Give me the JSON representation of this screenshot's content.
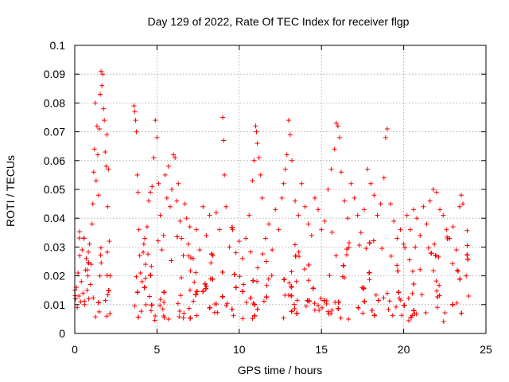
{
  "chart_data": {
    "type": "scatter",
    "title": "Day 129 of 2022, Rate Of TEC Index for receiver flgp",
    "xlabel": "GPS time / hours",
    "ylabel": "ROTI / TECUs",
    "xlim": [
      0,
      25
    ],
    "ylim": [
      0,
      0.1
    ],
    "x_ticks": [
      0,
      5,
      10,
      15,
      20,
      25
    ],
    "x_tick_labels": [
      "0",
      "5",
      "10",
      "15",
      "20",
      "25"
    ],
    "y_ticks": [
      0,
      0.01,
      0.02,
      0.03,
      0.04,
      0.05,
      0.06,
      0.07,
      0.08,
      0.09,
      0.1
    ],
    "y_tick_labels": [
      "0",
      "0.01",
      "0.02",
      "0.03",
      "0.04",
      "0.05",
      "0.06",
      "0.07",
      "0.08",
      "0.09",
      "0.1"
    ],
    "grid": true,
    "marker": "+",
    "marker_color": "#ff0000",
    "data_gaps_hours": [
      [
        2.2,
        3.5
      ]
    ],
    "series": [
      {
        "name": "ROTI",
        "points": [
          [
            0.05,
            0.012
          ],
          [
            0.1,
            0.016
          ],
          [
            0.15,
            0.009
          ],
          [
            0.2,
            0.021
          ],
          [
            0.25,
            0.013
          ],
          [
            0.3,
            0.027
          ],
          [
            0.35,
            0.011
          ],
          [
            0.4,
            0.018
          ],
          [
            0.45,
            0.029
          ],
          [
            0.5,
            0.014
          ],
          [
            0.55,
            0.033
          ],
          [
            0.6,
            0.01
          ],
          [
            0.65,
            0.022
          ],
          [
            0.7,
            0.026
          ],
          [
            0.75,
            0.015
          ],
          [
            0.8,
            0.02
          ],
          [
            0.85,
            0.012
          ],
          [
            0.9,
            0.031
          ],
          [
            0.95,
            0.017
          ],
          [
            1.0,
            0.024
          ],
          [
            1.05,
            0.038
          ],
          [
            1.1,
            0.045
          ],
          [
            1.15,
            0.056
          ],
          [
            1.2,
            0.064
          ],
          [
            1.25,
            0.08
          ],
          [
            1.3,
            0.053
          ],
          [
            1.35,
            0.072
          ],
          [
            1.4,
            0.062
          ],
          [
            1.45,
            0.048
          ],
          [
            1.5,
            0.071
          ],
          [
            1.55,
            0.083
          ],
          [
            1.6,
            0.091
          ],
          [
            1.65,
            0.086
          ],
          [
            1.7,
            0.09
          ],
          [
            1.75,
            0.078
          ],
          [
            1.8,
            0.074
          ],
          [
            1.85,
            0.063
          ],
          [
            1.9,
            0.058
          ],
          [
            1.95,
            0.069
          ],
          [
            2.0,
            0.044
          ],
          [
            2.05,
            0.057
          ],
          [
            2.1,
            0.032
          ],
          [
            2.15,
            0.02
          ],
          [
            3.6,
            0.079
          ],
          [
            3.65,
            0.077
          ],
          [
            3.7,
            0.074
          ],
          [
            3.75,
            0.07
          ],
          [
            3.8,
            0.055
          ],
          [
            3.85,
            0.049
          ],
          [
            3.9,
            0.036
          ],
          [
            3.95,
            0.027
          ],
          [
            4.0,
            0.021
          ],
          [
            4.1,
            0.018
          ],
          [
            4.2,
            0.031
          ],
          [
            4.3,
            0.024
          ],
          [
            4.4,
            0.037
          ],
          [
            4.5,
            0.046
          ],
          [
            4.6,
            0.049
          ],
          [
            4.7,
            0.051
          ],
          [
            4.8,
            0.061
          ],
          [
            4.9,
            0.074
          ],
          [
            5.0,
            0.068
          ],
          [
            5.1,
            0.052
          ],
          [
            5.2,
            0.041
          ],
          [
            5.3,
            0.029
          ],
          [
            5.4,
            0.034
          ],
          [
            5.5,
            0.055
          ],
          [
            5.6,
            0.047
          ],
          [
            5.7,
            0.058
          ],
          [
            5.8,
            0.044
          ],
          [
            5.9,
            0.05
          ],
          [
            6.0,
            0.062
          ],
          [
            6.1,
            0.061
          ],
          [
            6.2,
            0.046
          ],
          [
            6.3,
            0.052
          ],
          [
            6.4,
            0.039
          ],
          [
            6.5,
            0.033
          ],
          [
            6.6,
            0.027
          ],
          [
            6.7,
            0.045
          ],
          [
            6.8,
            0.04
          ],
          [
            6.9,
            0.031
          ],
          [
            7.0,
            0.037
          ],
          [
            7.2,
            0.026
          ],
          [
            7.4,
            0.036
          ],
          [
            7.6,
            0.029
          ],
          [
            7.8,
            0.044
          ],
          [
            8.0,
            0.034
          ],
          [
            8.2,
            0.041
          ],
          [
            8.4,
            0.027
          ],
          [
            8.6,
            0.042
          ],
          [
            8.8,
            0.036
          ],
          [
            9.0,
            0.075
          ],
          [
            9.05,
            0.067
          ],
          [
            9.1,
            0.055
          ],
          [
            9.2,
            0.044
          ],
          [
            9.4,
            0.03
          ],
          [
            9.6,
            0.036
          ],
          [
            9.8,
            0.028
          ],
          [
            10.0,
            0.032
          ],
          [
            10.2,
            0.026
          ],
          [
            10.4,
            0.033
          ],
          [
            10.6,
            0.041
          ],
          [
            10.8,
            0.053
          ],
          [
            10.9,
            0.06
          ],
          [
            11.0,
            0.072
          ],
          [
            11.05,
            0.07
          ],
          [
            11.1,
            0.066
          ],
          [
            11.2,
            0.061
          ],
          [
            11.3,
            0.055
          ],
          [
            11.4,
            0.047
          ],
          [
            11.6,
            0.033
          ],
          [
            11.8,
            0.038
          ],
          [
            12.0,
            0.029
          ],
          [
            12.2,
            0.043
          ],
          [
            12.4,
            0.036
          ],
          [
            12.6,
            0.047
          ],
          [
            12.7,
            0.052
          ],
          [
            12.8,
            0.057
          ],
          [
            12.9,
            0.062
          ],
          [
            13.0,
            0.074
          ],
          [
            13.1,
            0.069
          ],
          [
            13.2,
            0.06
          ],
          [
            13.4,
            0.046
          ],
          [
            13.6,
            0.041
          ],
          [
            13.8,
            0.052
          ],
          [
            14.0,
            0.044
          ],
          [
            14.2,
            0.038
          ],
          [
            14.4,
            0.034
          ],
          [
            14.6,
            0.047
          ],
          [
            14.8,
            0.043
          ],
          [
            15.0,
            0.036
          ],
          [
            15.2,
            0.039
          ],
          [
            15.4,
            0.05
          ],
          [
            15.6,
            0.057
          ],
          [
            15.8,
            0.064
          ],
          [
            15.9,
            0.073
          ],
          [
            16.0,
            0.072
          ],
          [
            16.1,
            0.068
          ],
          [
            16.2,
            0.056
          ],
          [
            16.4,
            0.046
          ],
          [
            16.6,
            0.04
          ],
          [
            16.8,
            0.052
          ],
          [
            17.0,
            0.047
          ],
          [
            17.2,
            0.041
          ],
          [
            17.4,
            0.035
          ],
          [
            17.6,
            0.043
          ],
          [
            17.8,
            0.057
          ],
          [
            18.0,
            0.052
          ],
          [
            18.2,
            0.048
          ],
          [
            18.4,
            0.041
          ],
          [
            18.6,
            0.045
          ],
          [
            18.8,
            0.054
          ],
          [
            18.9,
            0.068
          ],
          [
            19.0,
            0.071
          ],
          [
            19.2,
            0.045
          ],
          [
            19.4,
            0.039
          ],
          [
            19.6,
            0.033
          ],
          [
            19.8,
            0.036
          ],
          [
            20.0,
            0.031
          ],
          [
            20.2,
            0.041
          ],
          [
            20.4,
            0.036
          ],
          [
            20.6,
            0.043
          ],
          [
            20.8,
            0.04
          ],
          [
            21.0,
            0.034
          ],
          [
            21.2,
            0.044
          ],
          [
            21.4,
            0.038
          ],
          [
            21.6,
            0.046
          ],
          [
            21.8,
            0.05
          ],
          [
            22.0,
            0.049
          ],
          [
            22.2,
            0.043
          ],
          [
            22.4,
            0.041
          ],
          [
            22.6,
            0.036
          ],
          [
            22.8,
            0.033
          ],
          [
            23.0,
            0.037
          ],
          [
            23.2,
            0.029
          ],
          [
            23.4,
            0.044
          ],
          [
            23.5,
            0.048
          ],
          [
            23.6,
            0.045
          ],
          [
            23.8,
            0.02
          ],
          [
            23.95,
            0.013
          ]
        ]
      }
    ]
  }
}
